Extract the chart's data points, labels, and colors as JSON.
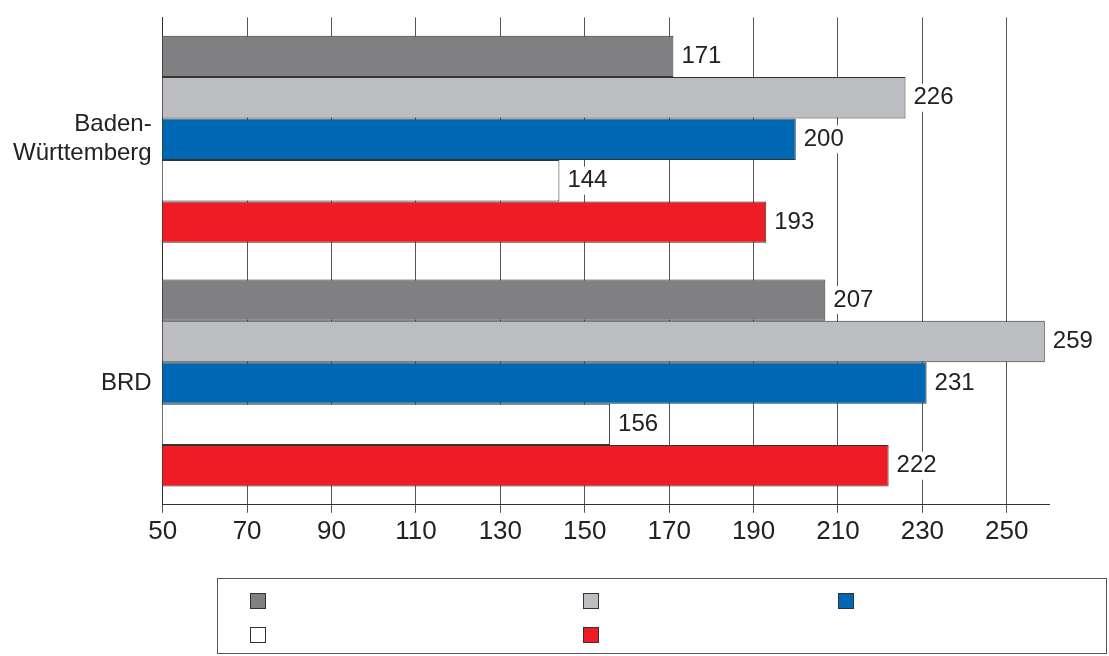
{
  "chart_data": {
    "type": "bar",
    "orientation": "horizontal",
    "categories": [
      "Baden-Württemberg",
      "BRD"
    ],
    "series": [
      {
        "color": "#808083",
        "values": [
          171,
          207
        ]
      },
      {
        "color": "#bcbdc0",
        "values": [
          226,
          259
        ]
      },
      {
        "color": "#0067b4",
        "values": [
          200,
          231
        ]
      },
      {
        "color": "#ffffff",
        "values": [
          144,
          156
        ]
      },
      {
        "color": "#ee1c25",
        "values": [
          193,
          222
        ]
      }
    ],
    "xlim": [
      50,
      260
    ],
    "xticks": [
      50,
      70,
      90,
      110,
      130,
      150,
      170,
      190,
      210,
      230,
      250
    ],
    "grid": "x",
    "data_labels": true
  }
}
